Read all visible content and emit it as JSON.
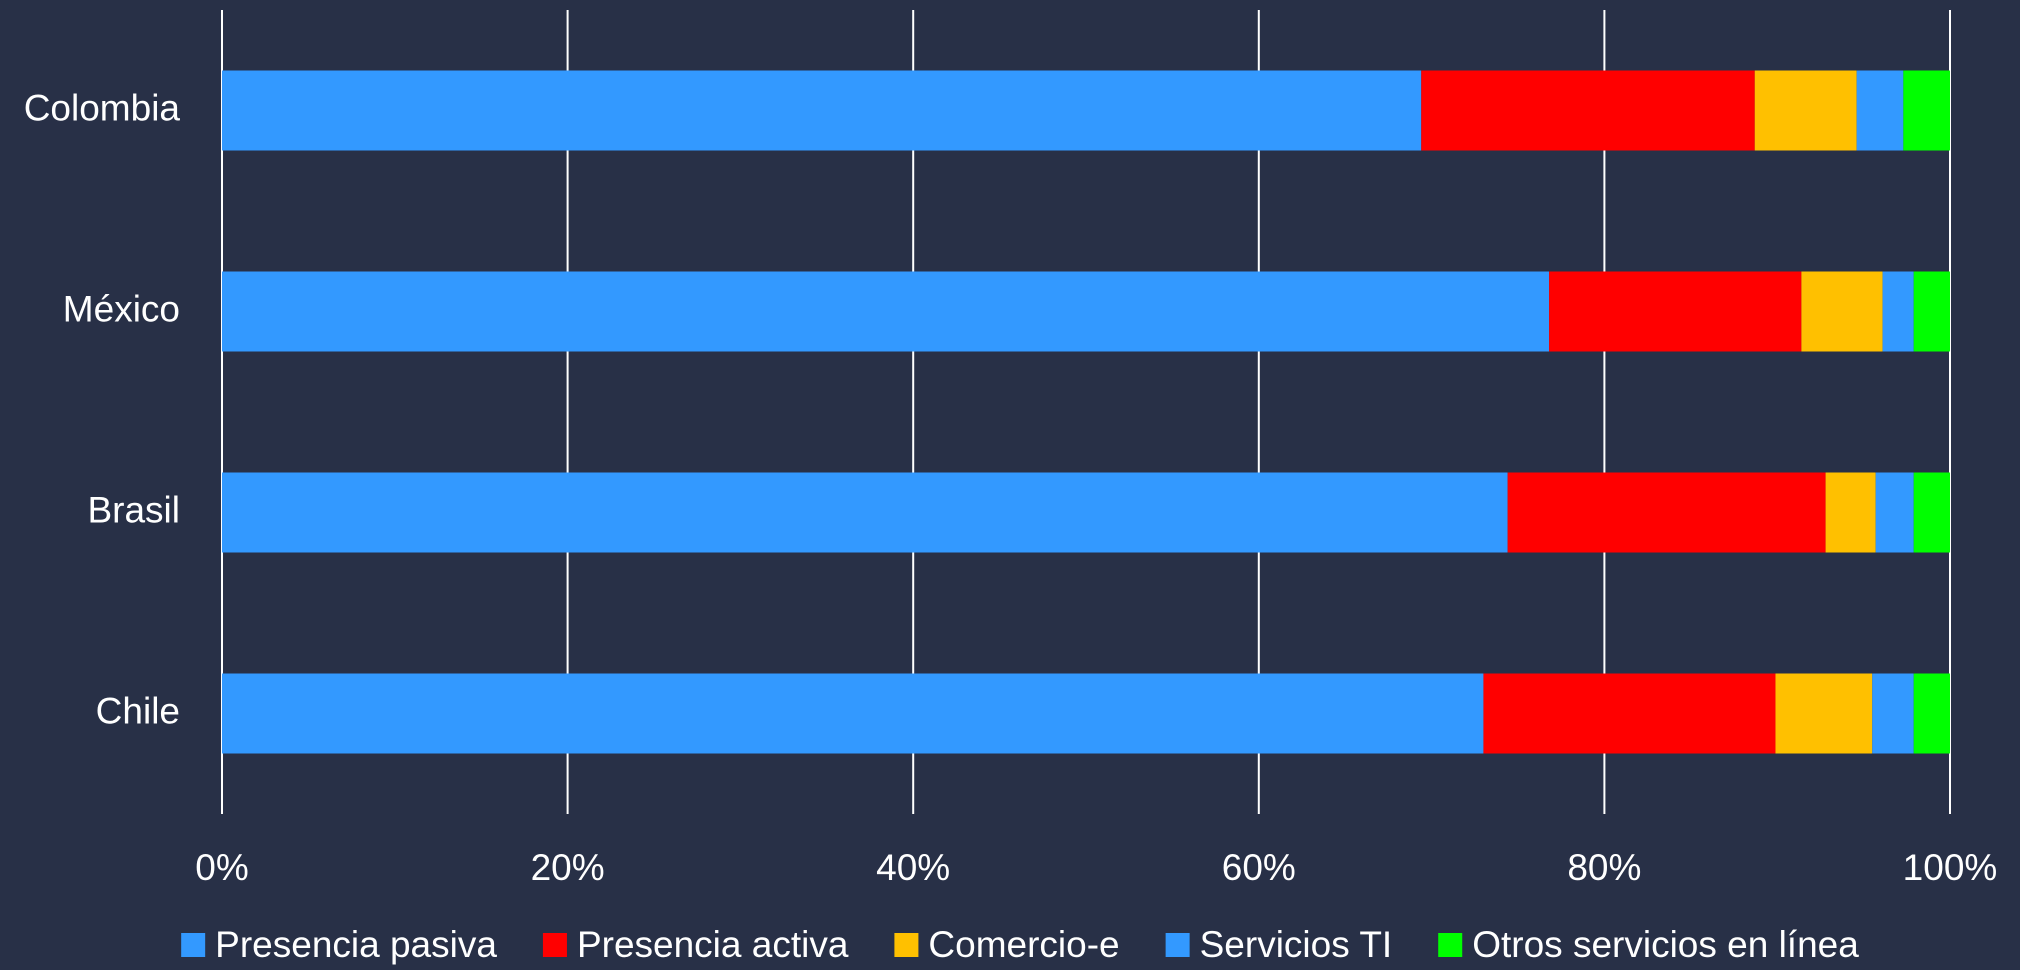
{
  "chart_data": {
    "type": "stacked-bar-horizontal",
    "categories": [
      "Colombia",
      "México",
      "Brasil",
      "Chile"
    ],
    "series": [
      {
        "name": "Presencia pasiva",
        "color": "#3399ff",
        "values": [
          69.4,
          76.8,
          74.4,
          73.0
        ]
      },
      {
        "name": "Presencia activa",
        "color": "#ff0000",
        "values": [
          19.3,
          14.6,
          18.4,
          16.9
        ]
      },
      {
        "name": "Comercio-e",
        "color": "#ffc000",
        "values": [
          5.9,
          4.7,
          2.9,
          5.6
        ]
      },
      {
        "name": "Servicios TI",
        "color": "#3399ff",
        "values": [
          2.7,
          1.8,
          2.2,
          2.4
        ]
      },
      {
        "name": "Otros servicios en línea",
        "color": "#00ff00",
        "values": [
          2.7,
          2.1,
          2.1,
          2.1
        ]
      }
    ],
    "xlim": [
      0,
      100
    ],
    "xticks": [
      {
        "value": 0,
        "label": "0%"
      },
      {
        "value": 20,
        "label": "20%"
      },
      {
        "value": 40,
        "label": "40%"
      },
      {
        "value": 60,
        "label": "60%"
      },
      {
        "value": 80,
        "label": "80%"
      },
      {
        "value": 100,
        "label": "100%"
      }
    ],
    "grid": true,
    "legend": "bottom"
  }
}
